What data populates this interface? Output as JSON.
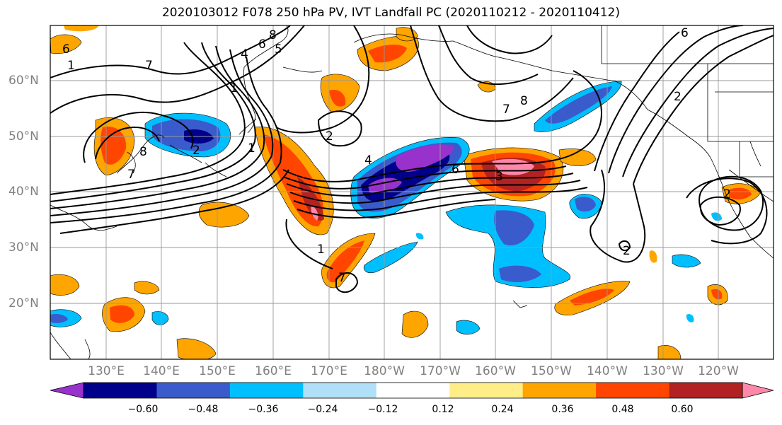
{
  "title": "2020103012 F078 250 hPa PV, IVT Landfall PC (2020110212 - 2020110412)",
  "map": {
    "lon_labels": [
      "130°E",
      "140°E",
      "150°E",
      "160°E",
      "170°E",
      "180°W",
      "170°W",
      "160°W",
      "150°W",
      "140°W",
      "130°W",
      "120°W"
    ],
    "lat_labels": [
      "60°N",
      "50°N",
      "40°N",
      "30°N",
      "20°N"
    ],
    "grid": true
  },
  "colorbar": {
    "colors": [
      "#9932cc",
      "#00008b",
      "#3a5bcc",
      "#00bfff",
      "#b0e0f8",
      "#ffffff",
      "#ffee88",
      "#ffa500",
      "#ff4500",
      "#b22222",
      "#ff88aa"
    ],
    "ticks": [
      "−0.60",
      "−0.48",
      "−0.36",
      "−0.24",
      "−0.12",
      "0.12",
      "0.24",
      "0.36",
      "0.48",
      "0.60"
    ]
  },
  "contour_labels": [
    "8",
    "6",
    "5",
    "4",
    "1",
    "7",
    "6",
    "2",
    "1",
    "2",
    "4",
    "1",
    "7",
    "2",
    "1",
    "8",
    "7",
    "7",
    "8",
    "6",
    "2",
    "2",
    "6",
    "3"
  ]
}
